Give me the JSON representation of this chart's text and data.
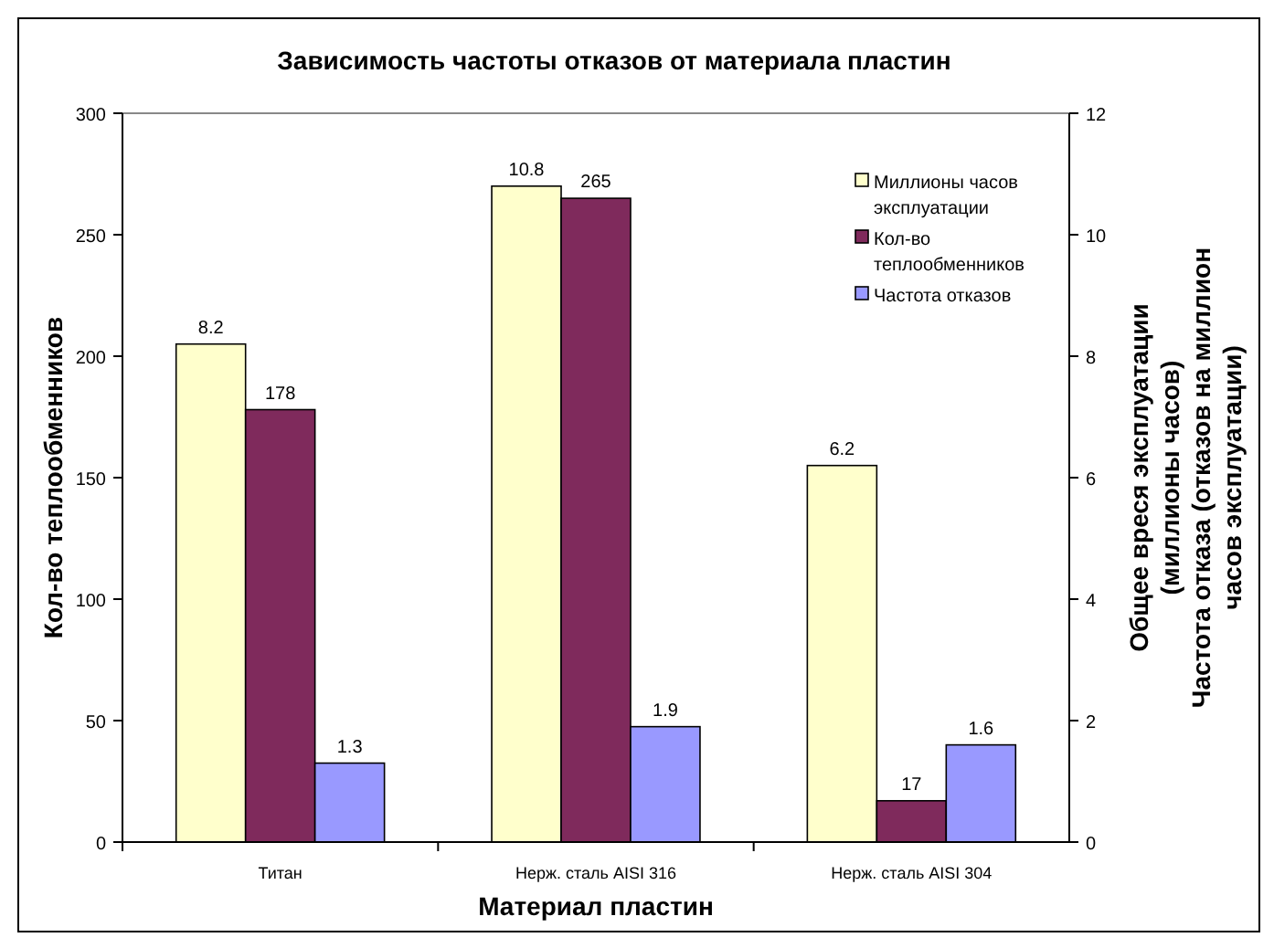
{
  "chart_data": {
    "type": "bar",
    "title": "Зависимость частоты отказов от материала пластин",
    "categories": [
      "Титан",
      "Нерж. сталь AISI 316",
      "Нерж. сталь AISI 304"
    ],
    "series": [
      {
        "name": "Миллионы часов эксплуатации",
        "color": "#ffffcc",
        "values": [
          8.2,
          10.8,
          6.2
        ],
        "axis": "y2"
      },
      {
        "name": "Кол-во теплообменников",
        "color": "#7f2a5c",
        "values": [
          178,
          265,
          17
        ]
      },
      {
        "name": "Частота отказов",
        "color": "#9999ff",
        "values": [
          1.3,
          1.9,
          1.6
        ],
        "axis": "y2"
      }
    ],
    "xlabel": "Материал пластин",
    "ylabel": "Кол-во теплообменников",
    "y2label": "Общее вреся эксплуатации (миллионы часов)",
    "annotations": [
      "Частота отказа (отказов на миллион часов эксплуатации)"
    ],
    "ylim": [
      0,
      300
    ],
    "yticks": [
      0,
      50,
      100,
      150,
      200,
      250,
      300
    ],
    "y2lim": [
      0,
      12
    ],
    "y2ticks": [
      0,
      2,
      4,
      6,
      8,
      10,
      12
    ],
    "data_labels": true,
    "legend": "top right",
    "grid": false
  }
}
